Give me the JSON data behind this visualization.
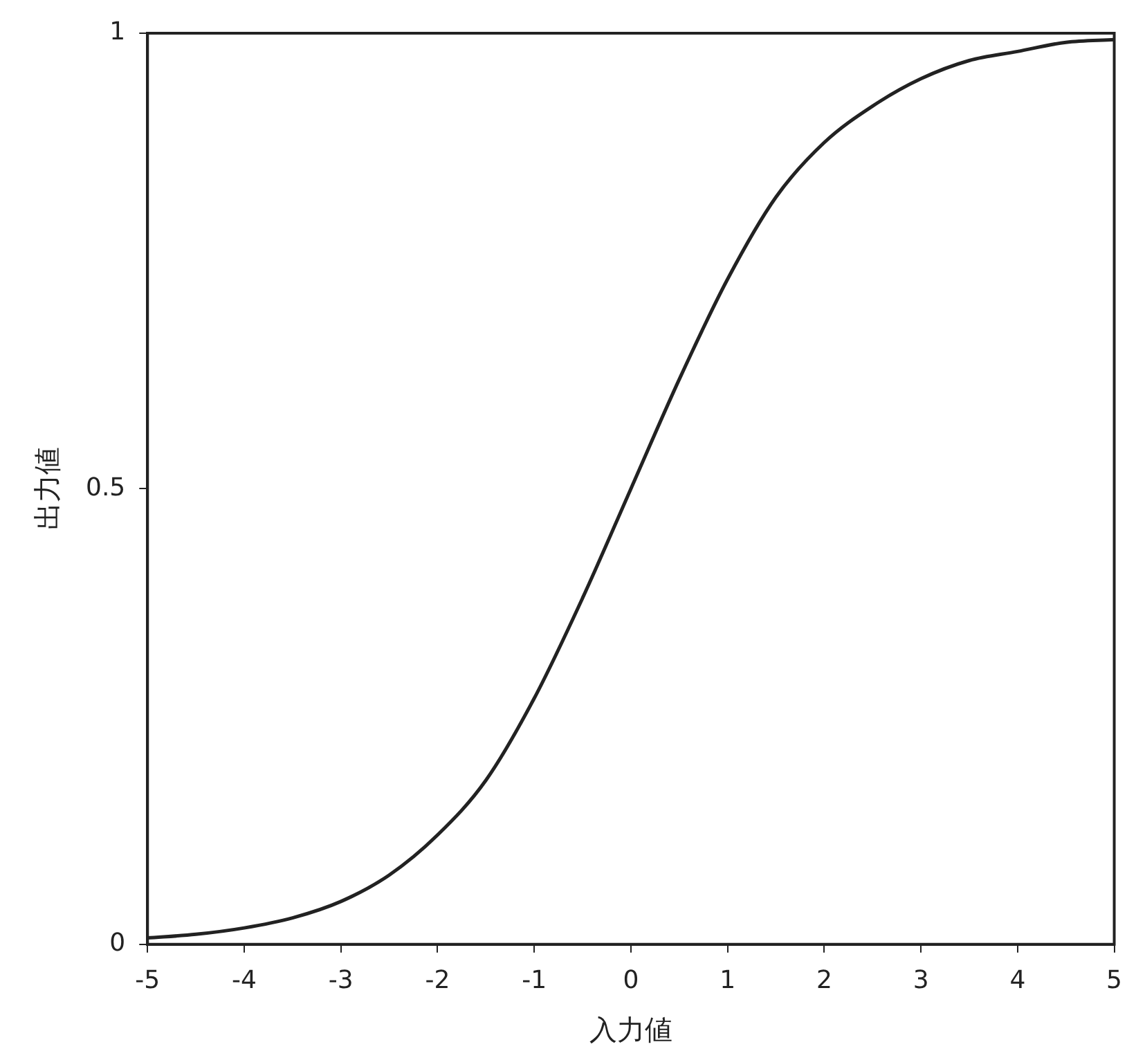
{
  "chart_data": {
    "type": "line",
    "xlabel": "入力値",
    "ylabel": "出力値",
    "x": [
      -5,
      -4.5,
      -4,
      -3.5,
      -3,
      -2.5,
      -2,
      -1.5,
      -1,
      -0.5,
      0,
      0.5,
      1,
      1.5,
      2,
      2.5,
      3,
      3.5,
      4,
      4.5,
      5
    ],
    "series": [
      {
        "color": "#222222",
        "values": [
          0.007,
          0.011,
          0.018,
          0.029,
          0.047,
          0.076,
          0.12,
          0.18,
          0.27,
          0.38,
          0.5,
          0.62,
          0.73,
          0.82,
          0.88,
          0.92,
          0.95,
          0.97,
          0.98,
          0.99,
          0.993
        ]
      }
    ],
    "xlim": [
      -5,
      5
    ],
    "xticks": [
      -5,
      -4,
      -3,
      -2,
      -1,
      0,
      1,
      2,
      3,
      4,
      5
    ],
    "ylim": [
      0,
      1
    ],
    "yticks": [
      0,
      0.5,
      1
    ],
    "grid": false,
    "legend": false,
    "marker": "none",
    "line_style": "solid"
  }
}
